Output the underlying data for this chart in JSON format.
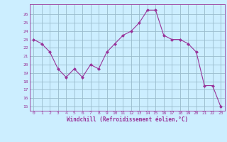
{
  "x": [
    0,
    1,
    2,
    3,
    4,
    5,
    6,
    7,
    8,
    9,
    10,
    11,
    12,
    13,
    14,
    15,
    16,
    17,
    18,
    19,
    20,
    21,
    22,
    23
  ],
  "y": [
    23,
    22.5,
    21.5,
    19.5,
    18.5,
    19.5,
    18.5,
    20,
    19.5,
    21.5,
    22.5,
    23.5,
    24,
    25,
    26.5,
    26.5,
    23.5,
    23,
    23,
    22.5,
    21.5,
    17.5,
    17.5,
    15
  ],
  "xlabel": "Windchill (Refroidissement éolien,°C)",
  "ylabel": "",
  "line_color": "#993399",
  "marker": "D",
  "marker_size": 2,
  "bg_color": "#cceeff",
  "grid_color": "#99bbcc",
  "axis_color": "#993399",
  "tick_color": "#993399",
  "xlim": [
    -0.5,
    23.5
  ],
  "ylim": [
    14.5,
    27.2
  ],
  "yticks": [
    15,
    16,
    17,
    18,
    19,
    20,
    21,
    22,
    23,
    24,
    25,
    26
  ],
  "xticks": [
    0,
    1,
    2,
    3,
    4,
    5,
    6,
    7,
    8,
    9,
    10,
    11,
    12,
    13,
    14,
    15,
    16,
    17,
    18,
    19,
    20,
    21,
    22,
    23
  ]
}
